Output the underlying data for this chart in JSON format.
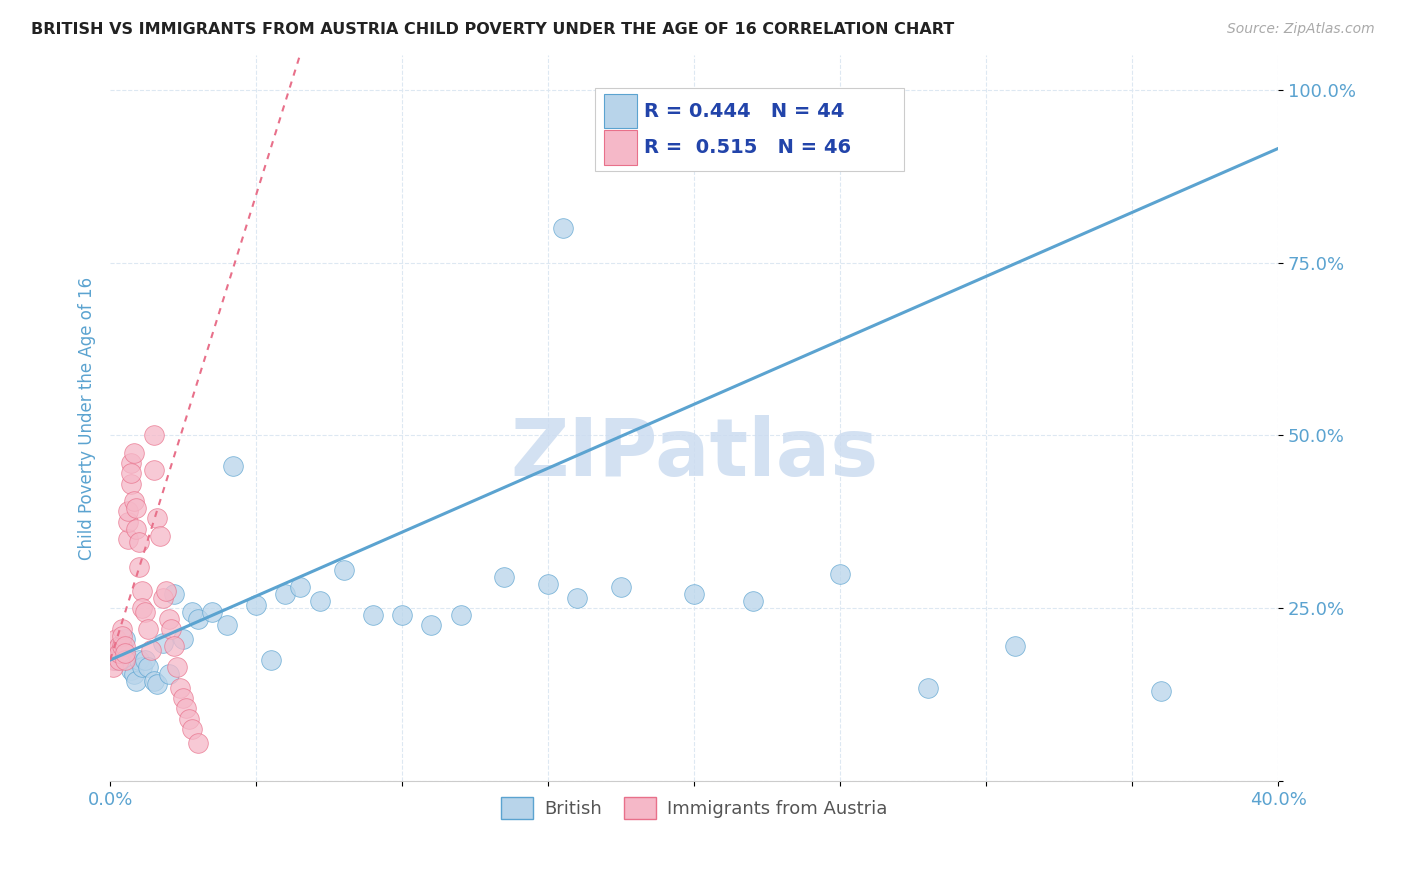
{
  "title": "BRITISH VS IMMIGRANTS FROM AUSTRIA CHILD POVERTY UNDER THE AGE OF 16 CORRELATION CHART",
  "source": "Source: ZipAtlas.com",
  "ylabel": "Child Poverty Under the Age of 16",
  "xlim": [
    0.0,
    0.4
  ],
  "ylim": [
    0.0,
    1.05
  ],
  "british_color": "#b8d4ea",
  "austria_color": "#f5b8c8",
  "british_line_color": "#5ba3d0",
  "austria_line_color": "#e8708a",
  "R_british": 0.444,
  "N_british": 44,
  "R_austria": 0.515,
  "N_austria": 46,
  "watermark": "ZIPatlas",
  "watermark_color": "#ccdcf0",
  "legend_label_british": "British",
  "legend_label_austria": "Immigrants from Austria",
  "background_color": "#ffffff",
  "grid_color": "#dde8f2",
  "title_color": "#222222",
  "tick_color": "#5ba3d0",
  "legend_text_color": "#2244aa",
  "british_x": [
    0.002,
    0.003,
    0.004,
    0.005,
    0.006,
    0.007,
    0.008,
    0.009,
    0.01,
    0.011,
    0.012,
    0.013,
    0.015,
    0.016,
    0.018,
    0.02,
    0.022,
    0.025,
    0.028,
    0.03,
    0.035,
    0.04,
    0.042,
    0.05,
    0.055,
    0.06,
    0.065,
    0.072,
    0.08,
    0.09,
    0.1,
    0.11,
    0.12,
    0.135,
    0.15,
    0.16,
    0.175,
    0.2,
    0.22,
    0.25,
    0.28,
    0.31,
    0.36,
    0.155
  ],
  "british_y": [
    0.175,
    0.195,
    0.185,
    0.205,
    0.175,
    0.16,
    0.155,
    0.145,
    0.175,
    0.165,
    0.175,
    0.165,
    0.145,
    0.14,
    0.2,
    0.155,
    0.27,
    0.205,
    0.245,
    0.235,
    0.245,
    0.225,
    0.455,
    0.255,
    0.175,
    0.27,
    0.28,
    0.26,
    0.305,
    0.24,
    0.24,
    0.225,
    0.24,
    0.295,
    0.285,
    0.265,
    0.28,
    0.27,
    0.26,
    0.3,
    0.135,
    0.195,
    0.13,
    0.8
  ],
  "austria_x": [
    0.001,
    0.001,
    0.002,
    0.002,
    0.003,
    0.003,
    0.003,
    0.004,
    0.004,
    0.004,
    0.005,
    0.005,
    0.005,
    0.006,
    0.006,
    0.006,
    0.007,
    0.007,
    0.007,
    0.008,
    0.008,
    0.009,
    0.009,
    0.01,
    0.01,
    0.011,
    0.011,
    0.012,
    0.013,
    0.014,
    0.015,
    0.015,
    0.016,
    0.017,
    0.018,
    0.019,
    0.02,
    0.021,
    0.022,
    0.023,
    0.024,
    0.025,
    0.026,
    0.027,
    0.028,
    0.03
  ],
  "austria_y": [
    0.175,
    0.165,
    0.205,
    0.19,
    0.195,
    0.175,
    0.185,
    0.195,
    0.22,
    0.21,
    0.195,
    0.175,
    0.185,
    0.35,
    0.375,
    0.39,
    0.43,
    0.46,
    0.445,
    0.475,
    0.405,
    0.395,
    0.365,
    0.345,
    0.31,
    0.275,
    0.25,
    0.245,
    0.22,
    0.19,
    0.5,
    0.45,
    0.38,
    0.355,
    0.265,
    0.275,
    0.235,
    0.22,
    0.195,
    0.165,
    0.135,
    0.12,
    0.105,
    0.09,
    0.075,
    0.055
  ],
  "brit_line_x0": 0.0,
  "brit_line_y0": 0.175,
  "brit_line_x1": 0.4,
  "brit_line_y1": 0.915,
  "aus_line_x0": 0.0,
  "aus_line_y0": 0.175,
  "aus_line_x1": 0.065,
  "aus_line_y1": 1.05
}
